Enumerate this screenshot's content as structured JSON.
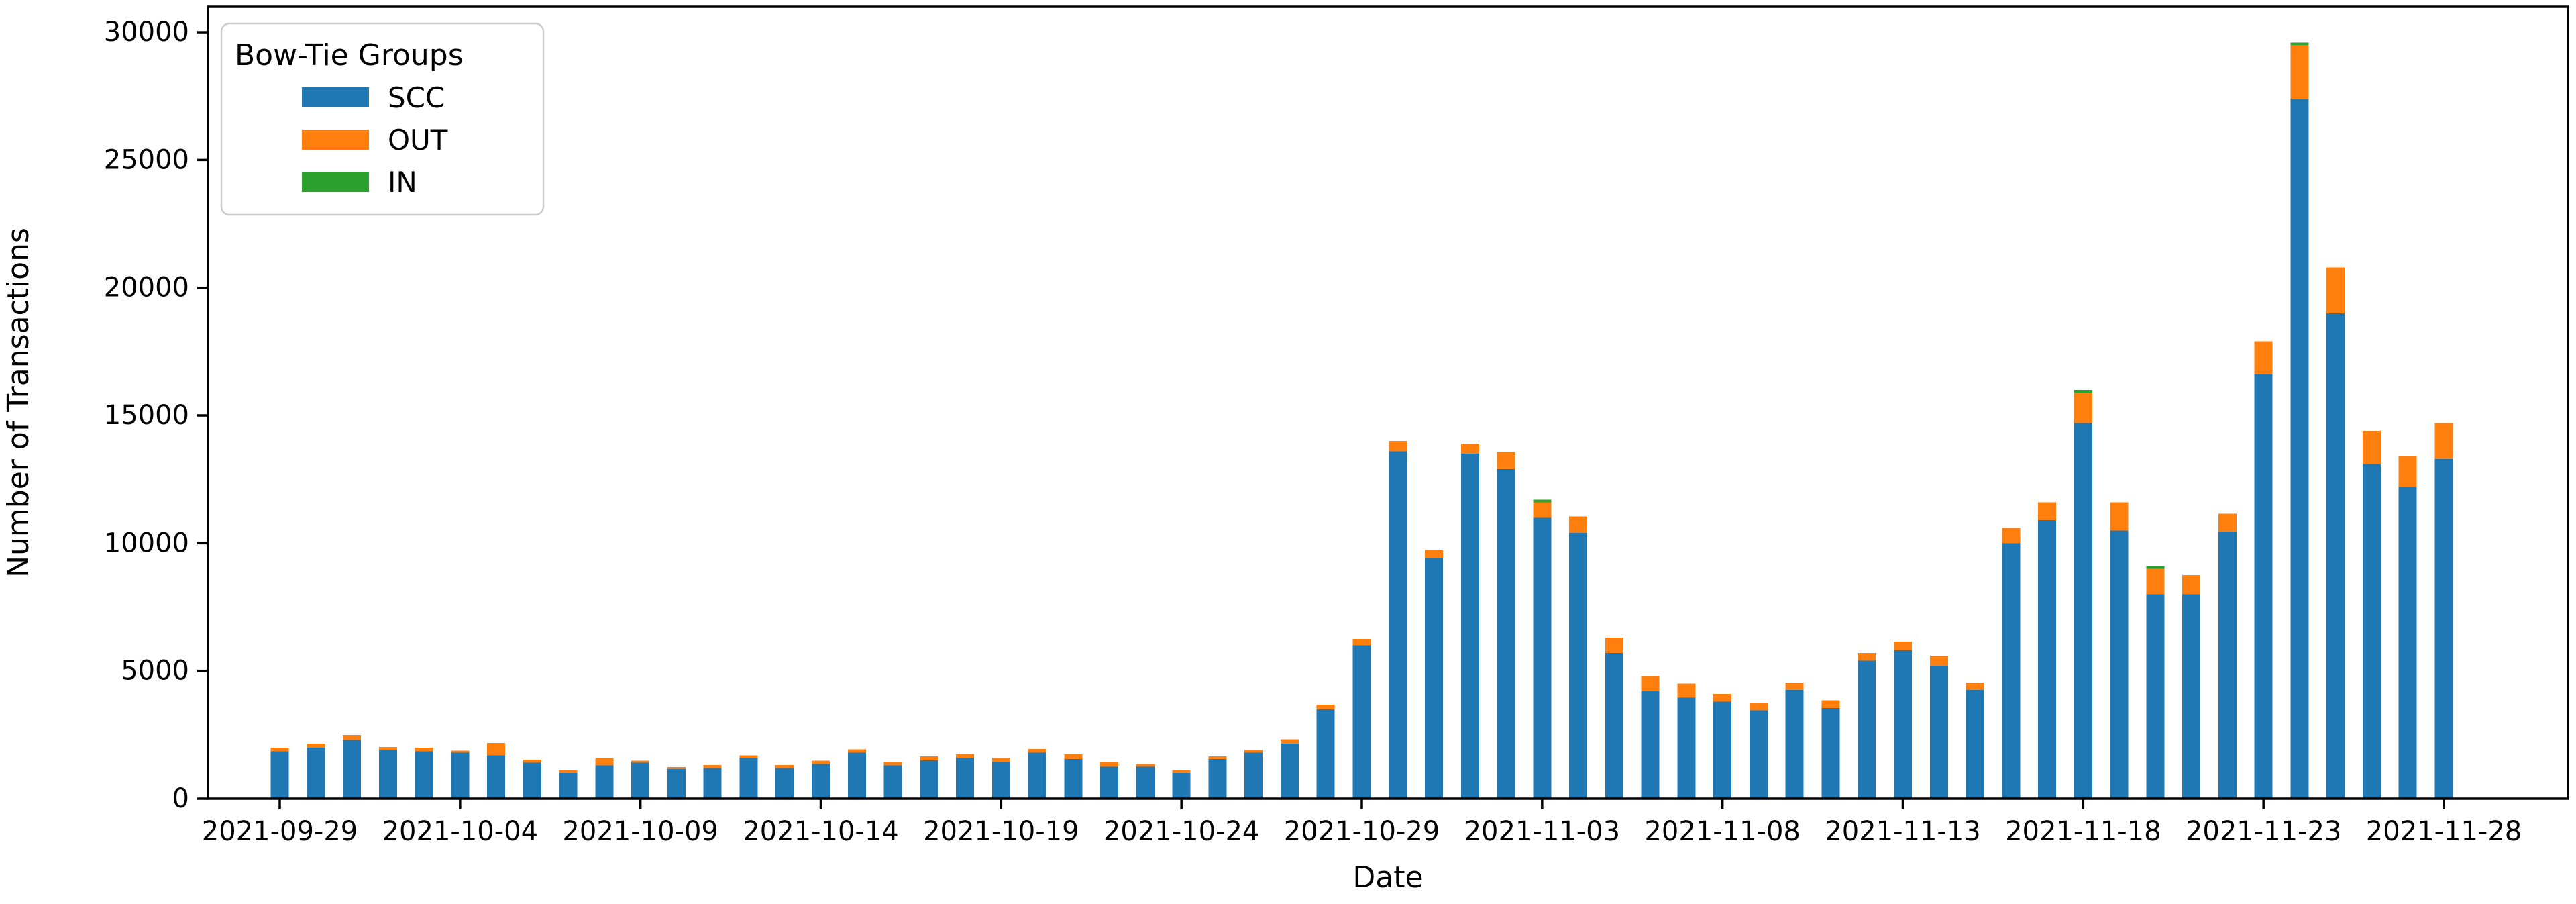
{
  "chart_data": {
    "type": "bar",
    "stacked": true,
    "title": "",
    "xlabel": "Date",
    "ylabel": "Number of Transactions",
    "legend_title": "Bow-Tie Groups",
    "legend_position": "upper left",
    "grid": false,
    "background_color": "#ffffff",
    "ylim": [
      0,
      31000
    ],
    "yticks": [
      0,
      5000,
      10000,
      15000,
      20000,
      25000,
      30000
    ],
    "xtick_every": 5,
    "xtick_labels": [
      "2021-09-29",
      "2021-10-04",
      "2021-10-09",
      "2021-10-14",
      "2021-10-19",
      "2021-10-24",
      "2021-10-29",
      "2021-11-03",
      "2021-11-08",
      "2021-11-13",
      "2021-11-18",
      "2021-11-23",
      "2021-11-28"
    ],
    "categories": [
      "2021-09-29",
      "2021-09-30",
      "2021-10-01",
      "2021-10-02",
      "2021-10-03",
      "2021-10-04",
      "2021-10-05",
      "2021-10-06",
      "2021-10-07",
      "2021-10-08",
      "2021-10-09",
      "2021-10-10",
      "2021-10-11",
      "2021-10-12",
      "2021-10-13",
      "2021-10-14",
      "2021-10-15",
      "2021-10-16",
      "2021-10-17",
      "2021-10-18",
      "2021-10-19",
      "2021-10-20",
      "2021-10-21",
      "2021-10-22",
      "2021-10-23",
      "2021-10-24",
      "2021-10-25",
      "2021-10-26",
      "2021-10-27",
      "2021-10-28",
      "2021-10-29",
      "2021-10-30",
      "2021-10-31",
      "2021-11-01",
      "2021-11-02",
      "2021-11-03",
      "2021-11-04",
      "2021-11-05",
      "2021-11-06",
      "2021-11-07",
      "2021-11-08",
      "2021-11-09",
      "2021-11-10",
      "2021-11-11",
      "2021-11-12",
      "2021-11-13",
      "2021-11-14",
      "2021-11-15",
      "2021-11-16",
      "2021-11-17",
      "2021-11-18",
      "2021-11-19",
      "2021-11-20",
      "2021-11-21",
      "2021-11-22",
      "2021-11-23",
      "2021-11-24",
      "2021-11-25",
      "2021-11-26",
      "2021-11-27",
      "2021-11-28"
    ],
    "series": [
      {
        "name": "SCC",
        "color": "#1f77b4",
        "values": [
          1850,
          2000,
          2300,
          1900,
          1850,
          1800,
          1700,
          1400,
          1000,
          1300,
          1400,
          1150,
          1200,
          1600,
          1200,
          1350,
          1800,
          1300,
          1500,
          1600,
          1450,
          1800,
          1550,
          1250,
          1250,
          1000,
          1550,
          1800,
          2150,
          3500,
          6000,
          13600,
          9400,
          13500,
          12900,
          11000,
          10400,
          5700,
          4200,
          3950,
          3800,
          3450,
          4250,
          3550,
          5400,
          5800,
          5200,
          4250,
          10000,
          10900,
          14700,
          10500,
          8000,
          8000,
          10450,
          16600,
          27400,
          19000,
          13100,
          12200,
          13300
        ]
      },
      {
        "name": "OUT",
        "color": "#ff7f0e",
        "values": [
          150,
          150,
          200,
          120,
          150,
          80,
          480,
          130,
          120,
          270,
          90,
          80,
          120,
          100,
          120,
          130,
          130,
          130,
          150,
          150,
          150,
          150,
          180,
          180,
          100,
          120,
          100,
          100,
          180,
          180,
          250,
          400,
          350,
          400,
          650,
          600,
          650,
          600,
          600,
          550,
          300,
          300,
          300,
          300,
          300,
          350,
          400,
          300,
          600,
          700,
          1200,
          1100,
          1000,
          750,
          700,
          1300,
          2100,
          1800,
          1300,
          1200,
          1400
        ]
      },
      {
        "name": "IN",
        "color": "#2ca02c",
        "values": [
          0,
          0,
          0,
          0,
          0,
          0,
          0,
          0,
          0,
          0,
          0,
          0,
          0,
          0,
          0,
          0,
          0,
          0,
          0,
          0,
          0,
          0,
          0,
          0,
          0,
          0,
          0,
          0,
          0,
          0,
          0,
          0,
          0,
          0,
          0,
          100,
          0,
          0,
          0,
          0,
          0,
          0,
          0,
          0,
          0,
          0,
          0,
          0,
          0,
          0,
          100,
          0,
          100,
          0,
          0,
          0,
          100,
          0,
          0,
          0,
          0
        ]
      }
    ]
  }
}
